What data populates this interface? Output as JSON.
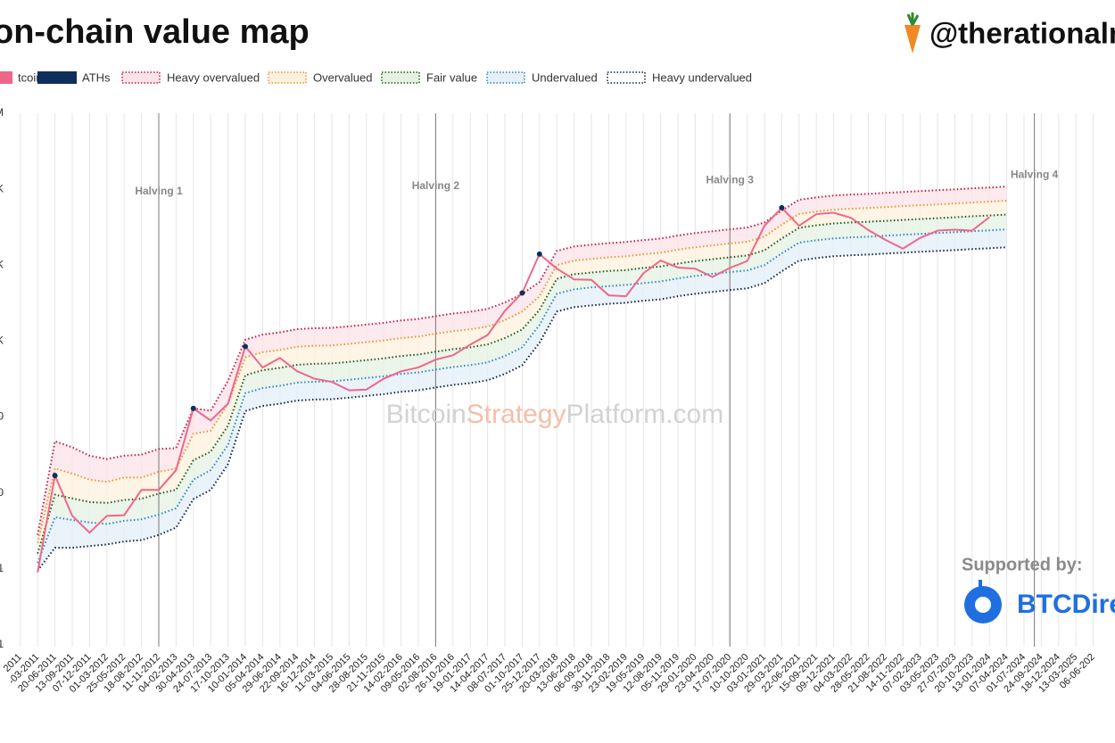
{
  "chart_data": {
    "type": "line",
    "title": "on-chain value map",
    "log_y": true,
    "grid_x": true,
    "ylim": [
      0.1,
      1000000
    ],
    "yticks": [
      {
        "value": 1000000,
        "label": "M"
      },
      {
        "value": 100000,
        "label": "K"
      },
      {
        "value": 10000,
        "label": "K"
      },
      {
        "value": 1000,
        "label": "K"
      },
      {
        "value": 100,
        "label": "0"
      },
      {
        "value": 10,
        "label": "0"
      },
      1,
      {
        "value": 0.1,
        "label": "1"
      }
    ],
    "categories": [
      "2011",
      "-03-2011",
      "20-06-2011",
      "13-09-2011",
      "07-12-2011",
      "01-03-2012",
      "25-05-2012",
      "18-08-2012",
      "11-11-2012",
      "04-02-2013",
      "30-04-2013",
      "24-07-2013",
      "17-10-2013",
      "10-01-2014",
      "05-04-2014",
      "29-06-2014",
      "22-09-2014",
      "16-12-2014",
      "11-03-2015",
      "04-06-2015",
      "28-08-2015",
      "21-11-2015",
      "14-02-2016",
      "09-05-2016",
      "02-08-2016",
      "26-10-2016",
      "19-01-2017",
      "14-04-2017",
      "08-07-2017",
      "01-10-2017",
      "25-12-2017",
      "20-03-2018",
      "13-06-2018",
      "06-09-2018",
      "30-11-2018",
      "23-02-2019",
      "19-05-2019",
      "12-08-2019",
      "05-11-2019",
      "29-01-2020",
      "23-04-2020",
      "17-07-2020",
      "10-10-2020",
      "03-01-2021",
      "29-03-2021",
      "22-06-2021",
      "15-09-2021",
      "09-12-2021",
      "04-03-2022",
      "28-05-2022",
      "21-08-2022",
      "14-11-2022",
      "07-02-2023",
      "03-05-2023",
      "27-07-2023",
      "20-10-2023",
      "13-01-2024",
      "07-04-2024",
      "01-07-2024",
      "24-09-2024",
      "18-12-2024",
      "13-03-2025",
      "06-06-202"
    ],
    "series": [
      {
        "name": "tcoin",
        "style": "line",
        "color": "#f0668a",
        "values": [
          null,
          0.9,
          17,
          5,
          3,
          5,
          5.1,
          11,
          11,
          20,
          130,
          90,
          150,
          850,
          450,
          600,
          400,
          320,
          290,
          225,
          230,
          320,
          400,
          450,
          570,
          650,
          900,
          1200,
          2500,
          4300,
          14000,
          9000,
          6500,
          6400,
          4000,
          3900,
          7800,
          11500,
          9300,
          9000,
          7000,
          9200,
          11300,
          33000,
          57000,
          33000,
          47000,
          49000,
          42000,
          29000,
          21500,
          16500,
          22900,
          28500,
          29300,
          28500,
          43000,
          null,
          null,
          null,
          null,
          null,
          null
        ]
      },
      {
        "name": "ATHs",
        "style": "markers",
        "color": "#0e2f5c",
        "values": [
          null,
          null,
          17,
          null,
          null,
          null,
          null,
          null,
          null,
          null,
          130,
          null,
          null,
          850,
          null,
          null,
          null,
          null,
          null,
          null,
          null,
          null,
          null,
          null,
          null,
          null,
          null,
          null,
          null,
          4300,
          14000,
          null,
          null,
          null,
          null,
          null,
          null,
          null,
          null,
          null,
          null,
          null,
          null,
          null,
          57000,
          null,
          null,
          null,
          null,
          null,
          null,
          null,
          null,
          null,
          null,
          null,
          null,
          null,
          null,
          null,
          null,
          null,
          null
        ]
      },
      {
        "name": "Heavy overvalued",
        "style": "dotted",
        "color": "#c41a44",
        "fill": "#fbe3e8",
        "values": [
          null,
          2.8,
          48,
          40,
          31,
          28,
          31,
          32,
          38,
          39,
          130,
          121,
          300,
          1044,
          1218,
          1305,
          1436,
          1479,
          1496,
          1566,
          1653,
          1740,
          1871,
          1958,
          2132,
          2306,
          2436,
          2654,
          3219,
          4176,
          6000,
          15400,
          17600,
          18600,
          19500,
          20200,
          21400,
          22400,
          24600,
          26500,
          28000,
          29600,
          31200,
          36500,
          52300,
          72500,
          78100,
          82500,
          85000,
          86900,
          89500,
          92000,
          94500,
          97000,
          99500,
          102700,
          105200,
          108400,
          null,
          null,
          null,
          null,
          null
        ]
      },
      {
        "name": "Overvalued",
        "style": "dotted",
        "color": "#f0922a",
        "fill": "#fdf1de",
        "values": [
          null,
          2.2,
          21,
          18,
          15,
          14,
          16,
          16,
          19,
          21,
          60,
          66,
          150,
          612,
          714,
          765,
          842,
          867,
          877,
          918,
          969,
          1020,
          1097,
          1148,
          1250,
          1352,
          1428,
          1556,
          1887,
          2448,
          3900,
          10000,
          11500,
          12100,
          12700,
          13100,
          13900,
          14600,
          16000,
          17200,
          18200,
          19300,
          20300,
          23800,
          34000,
          47200,
          50800,
          53700,
          55400,
          56600,
          58200,
          59900,
          61500,
          63100,
          64800,
          66800,
          68500,
          70500,
          null,
          null,
          null,
          null,
          null
        ]
      },
      {
        "name": "Fair value",
        "style": "dotted",
        "color": "#1c5a1c",
        "fill": "#e6f1e3",
        "values": [
          null,
          1.6,
          9.5,
          8.5,
          7.6,
          7.4,
          8.1,
          8.4,
          9.8,
          11,
          27,
          35,
          77,
          355,
          414,
          444,
          488,
          503,
          509,
          533,
          562,
          592,
          636,
          666,
          725,
          784,
          829,
          903,
          1095,
          1421,
          2570,
          6600,
          7600,
          8000,
          8400,
          8600,
          9200,
          9600,
          10500,
          11300,
          12000,
          12700,
          13400,
          15700,
          22400,
          31000,
          33500,
          35400,
          36500,
          37300,
          38300,
          39400,
          40500,
          41600,
          42700,
          44000,
          45100,
          46400,
          null,
          null,
          null,
          null,
          null
        ]
      },
      {
        "name": "Undervalued",
        "style": "dotted",
        "color": "#2a86c4",
        "fill": "#e4eff8",
        "values": [
          null,
          1.2,
          4.8,
          4.4,
          4.1,
          3.9,
          4.3,
          4.5,
          5.2,
          6.3,
          15,
          20,
          43,
          206,
          241,
          258,
          284,
          292,
          296,
          310,
          327,
          344,
          370,
          387,
          421,
          456,
          482,
          525,
          636,
          826,
          1630,
          4200,
          4800,
          5100,
          5300,
          5500,
          5800,
          6100,
          6700,
          7200,
          7700,
          8100,
          8500,
          10000,
          14300,
          19800,
          21300,
          22500,
          23200,
          23700,
          24400,
          25100,
          25800,
          26500,
          27200,
          28000,
          28700,
          29600,
          null,
          null,
          null,
          null,
          null
        ]
      },
      {
        "name": "Heavy undervalued",
        "style": "dotted",
        "color": "#0f2347",
        "fill": "#ffffff",
        "values": [
          null,
          0.95,
          1.9,
          1.9,
          2,
          2.1,
          2.3,
          2.4,
          2.8,
          3.5,
          8.3,
          11,
          24,
          120,
          140,
          150,
          165,
          170,
          172,
          180,
          190,
          200,
          215,
          225,
          245,
          265,
          280,
          305,
          370,
          480,
          950,
          2450,
          2800,
          2950,
          3100,
          3200,
          3400,
          3550,
          3900,
          4200,
          4450,
          4700,
          4950,
          5800,
          8300,
          11500,
          12400,
          13100,
          13500,
          13800,
          14200,
          14600,
          15000,
          15400,
          15800,
          16300,
          16700,
          17200,
          null,
          null,
          null,
          null,
          null
        ]
      }
    ],
    "annotations": [
      {
        "text": "Halving 1",
        "x": 8
      },
      {
        "text": "Halving 2",
        "x": 24
      },
      {
        "text": "Halving 3",
        "x": 41
      },
      {
        "text": "Halving 4",
        "x": 58.6
      }
    ]
  },
  "branding": {
    "handle": "@therationalm",
    "watermark": [
      "Bitcoin",
      "Strategy",
      "Platform.com"
    ],
    "supported_by": "Supported by:",
    "sponsor": "BTCDire"
  }
}
